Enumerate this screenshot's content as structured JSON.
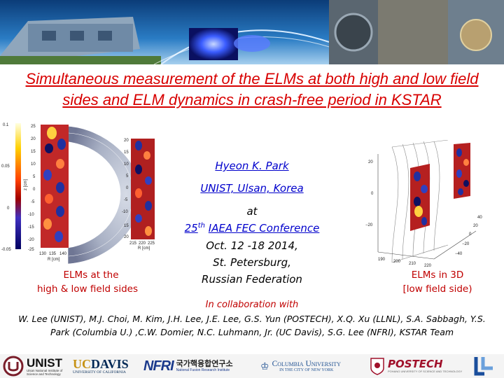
{
  "slide": {
    "title": "Simultaneous measurement of the ELMs at both high and low field sides and ELM dynamics in crash-free period in KSTAR",
    "author": "Hyeon K. Park",
    "affiliation": "UNIST, Ulsan, Korea",
    "at": "at",
    "conference_num": "25",
    "conference_sup": "th",
    "conference_name": "IAEA FEC Conference",
    "date": "Oct. 12 -18 2014,",
    "city": "St. Petersburg,",
    "country": "Russian Federation",
    "caption_left_1": "ELMs at the",
    "caption_left_2": "high & low field sides",
    "caption_right_1": "ELMs in 3D",
    "caption_right_2": "[low field side)",
    "collab_head": "In collaboration with",
    "collab_body": "W. Lee (UNIST), M.J. Choi, M. Kim, J.H. Lee, J.E. Lee, G.S. Yun (POSTECH), X.Q. Xu (LLNL), S.A. Sabbagh, Y.S. Park (Columbia U.) ,C.W. Domier, N.C. Luhmann, Jr. (UC Davis), S.G. Lee (NFRI), KSTAR Team"
  },
  "figure_left": {
    "colorbar_ticks": [
      "0.1",
      "0.05",
      "0",
      "-0.05"
    ],
    "z_ticks": [
      "25",
      "20",
      "15",
      "10",
      "5",
      "0",
      "-5",
      "-10",
      "-15",
      "-20",
      "-25"
    ],
    "z_label": "z [cm]",
    "r_ticks": [
      "130",
      "135",
      "140"
    ],
    "r_label": "R [cm]",
    "z2_ticks": [
      "20",
      "15",
      "10",
      "5",
      "0",
      "-5",
      "-10",
      "15",
      "20"
    ],
    "r2_ticks": [
      "215",
      "220",
      "225"
    ],
    "r2_label": "R [cm]"
  },
  "figure_right": {
    "z_ticks": [
      "20",
      "0",
      "−20"
    ],
    "x_ticks": [
      "190",
      "200",
      "210",
      "220"
    ],
    "y_ticks": [
      "40",
      "20",
      "0",
      "−20",
      "−40"
    ]
  },
  "logos": {
    "unist": "UNIST",
    "unist_sub": "Ulsan National Institute of Science and Technology",
    "ucdavis_uc": "UC",
    "ucdavis": "DAVIS",
    "ucdavis_sub": "UNIVERSITY OF CALIFORNIA",
    "nfri": "NFRI",
    "nfri_kr": "국가핵융합연구소",
    "nfri_sub": "National Fusion Research Institute",
    "columbia": "Columbia University",
    "columbia_sub": "IN THE CITY OF NEW YORK",
    "postech": "POSTECH",
    "postech_sub": "POHANG UNIVERSITY OF SCIENCE AND TECHNOLOGY"
  },
  "colors": {
    "title": "#d80000",
    "link": "#0000cc",
    "caption": "#c00000"
  }
}
